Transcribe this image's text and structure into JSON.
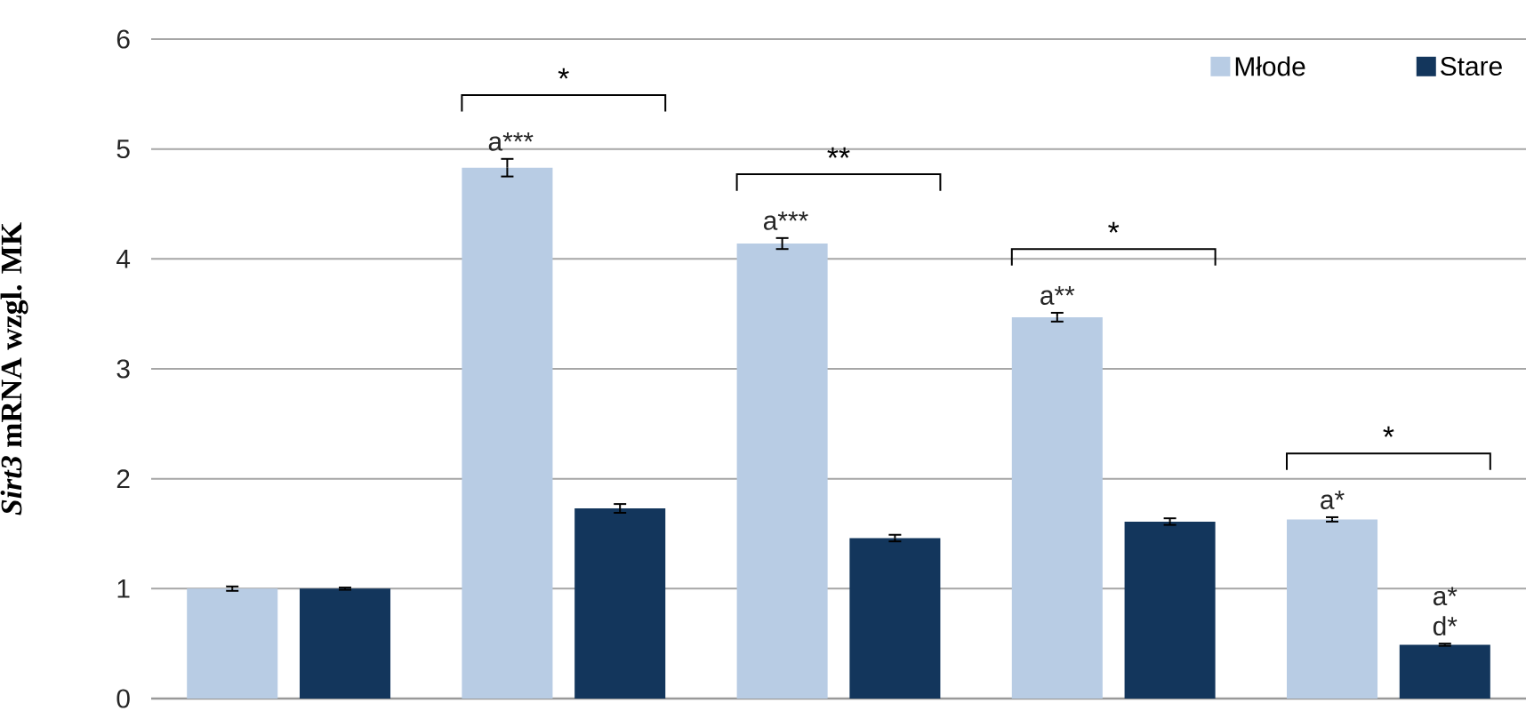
{
  "chart_data": {
    "type": "bar",
    "ylabel": "*Sirt3* mRNA wzgl. MK",
    "categories": [
      null,
      null,
      null,
      null,
      null
    ],
    "series": [
      {
        "name": "Młode",
        "color": "#b8cce4",
        "values": [
          1.0,
          4.83,
          4.14,
          3.47,
          1.63
        ],
        "errors": [
          0.02,
          0.08,
          0.05,
          0.04,
          0.02
        ],
        "value_labels": [
          null,
          "a***",
          "a***",
          "a**",
          "a*"
        ]
      },
      {
        "name": "Stare",
        "color": "#13365c",
        "values": [
          1.0,
          1.73,
          1.46,
          1.61,
          0.49
        ],
        "errors": [
          0.01,
          0.04,
          0.03,
          0.03,
          0.01
        ],
        "value_labels": [
          null,
          null,
          null,
          null,
          "a* d*"
        ]
      }
    ],
    "annotations": [
      "*",
      "**",
      "*",
      "*"
    ],
    "ylim": [
      0,
      6
    ],
    "yticks": [
      0,
      1,
      2,
      3,
      4,
      5,
      6
    ],
    "grid": "y",
    "legend": "top right"
  }
}
